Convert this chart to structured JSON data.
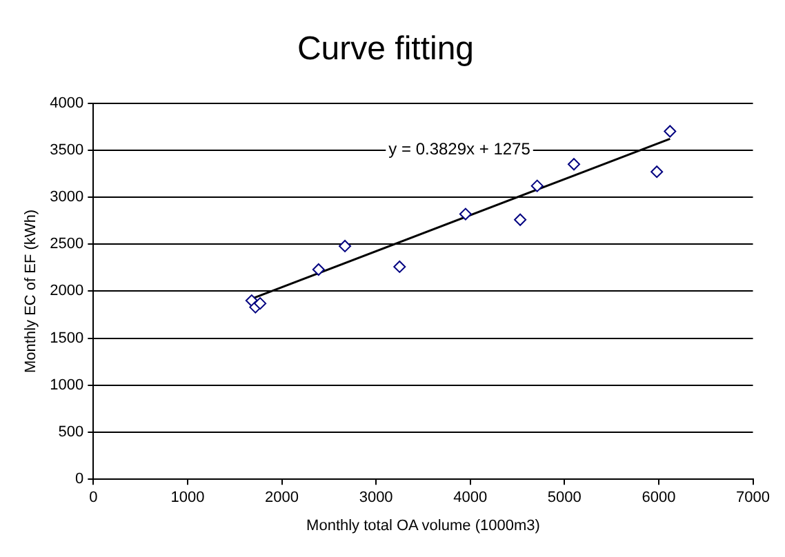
{
  "chart_data": {
    "type": "scatter",
    "title": "Curve fitting",
    "xlabel": "Monthly total OA volume (1000m3)",
    "ylabel": "Monthly EC of EF (kWh)",
    "series": [
      {
        "color": "#000080",
        "marker": "diamond",
        "x": [
          1680,
          1720,
          1770,
          2390,
          2670,
          3250,
          3950,
          4530,
          4710,
          5100,
          5980,
          6120
        ],
        "values": [
          1900,
          1830,
          1870,
          2230,
          2480,
          2260,
          2820,
          2760,
          3120,
          3350,
          3270,
          3700
        ]
      },
      {
        "type": "line",
        "color": "#000000",
        "marker": "none",
        "x": [
          1680,
          6120
        ],
        "values": [
          1920,
          3620
        ]
      }
    ],
    "annotations": [
      "y = 0.3829x + 1275"
    ],
    "xlim": [
      0,
      7000
    ],
    "xticks": [
      0,
      1000,
      2000,
      3000,
      4000,
      5000,
      6000,
      7000
    ],
    "ylim": [
      0,
      4000
    ],
    "yticks": [
      0,
      500,
      1000,
      1500,
      2000,
      2500,
      3000,
      3500,
      4000
    ],
    "grid": "y",
    "legend": false
  }
}
